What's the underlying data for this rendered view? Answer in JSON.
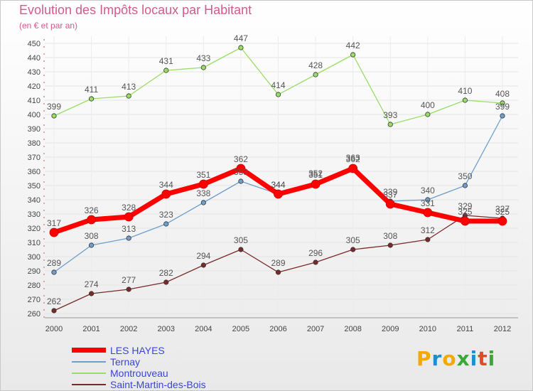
{
  "header": {
    "title": "Evolution des Impôts locaux par Habitant",
    "subtitle": "(en € et par an)"
  },
  "brand": {
    "letters": [
      "P",
      "r",
      "o",
      "x",
      "i",
      "t",
      "i"
    ],
    "colors": [
      "#f2a900",
      "#1a8fd1",
      "#f2a900",
      "#3aa935",
      "#1a8fd1",
      "#e24a2a",
      "#3aa935"
    ]
  },
  "chart_data": {
    "type": "line",
    "title": "Evolution des Impôts locaux par Habitant",
    "subtitle": "(en € et par an)",
    "xlabel": "",
    "ylabel": "",
    "categories": [
      "2000",
      "2001",
      "2002",
      "2003",
      "2004",
      "2005",
      "2006",
      "2007",
      "2008",
      "2009",
      "2010",
      "2011",
      "2012"
    ],
    "ylim": [
      260,
      450
    ],
    "ytick_step": 10,
    "grid": true,
    "legend_position": "bottom-left",
    "series": [
      {
        "name": "LES HAYES",
        "color": "#ff0000",
        "emphasis": true,
        "values": [
          317,
          326,
          328,
          344,
          351,
          362,
          344,
          351,
          362,
          337,
          331,
          325,
          325
        ]
      },
      {
        "name": "Ternay",
        "color": "#6e9fcc",
        "emphasis": false,
        "values": [
          289,
          308,
          313,
          323,
          338,
          353,
          344,
          352,
          363,
          339,
          340,
          350,
          399
        ]
      },
      {
        "name": "Montrouveau",
        "color": "#99dd66",
        "emphasis": false,
        "values": [
          399,
          411,
          413,
          431,
          433,
          447,
          414,
          428,
          442,
          393,
          400,
          410,
          408
        ]
      },
      {
        "name": "Saint-Martin-des-Bois",
        "color": "#7a2a2a",
        "emphasis": false,
        "values": [
          262,
          274,
          277,
          282,
          294,
          305,
          289,
          296,
          305,
          308,
          312,
          329,
          327
        ]
      }
    ],
    "value_labels": [
      {
        "x": "2000",
        "series": "LES HAYES",
        "text": "317"
      },
      {
        "x": "2001",
        "series": "LES HAYES",
        "text": "326"
      },
      {
        "x": "2002",
        "series": "LES HAYES",
        "text": "328"
      },
      {
        "x": "2003",
        "series": "LES HAYES",
        "text": "344"
      },
      {
        "x": "2004",
        "series": "LES HAYES",
        "text": "351"
      },
      {
        "x": "2005",
        "series": "LES HAYES",
        "text": "362"
      },
      {
        "x": "2006",
        "series": "LES HAYES",
        "text": "344"
      },
      {
        "x": "2007",
        "series": "LES HAYES",
        "text": "351"
      },
      {
        "x": "2008",
        "series": "LES HAYES",
        "text": "362"
      },
      {
        "x": "2009",
        "series": "LES HAYES",
        "text": "337"
      },
      {
        "x": "2010",
        "series": "LES HAYES",
        "text": "331"
      },
      {
        "x": "2011",
        "series": "LES HAYES",
        "text": "325"
      },
      {
        "x": "2012",
        "series": "LES HAYES",
        "text": "325"
      },
      {
        "x": "2000",
        "series": "Ternay",
        "text": "289"
      },
      {
        "x": "2001",
        "series": "Ternay",
        "text": "308"
      },
      {
        "x": "2002",
        "series": "Ternay",
        "text": "313"
      },
      {
        "x": "2003",
        "series": "Ternay",
        "text": "323"
      },
      {
        "x": "2004",
        "series": "Ternay",
        "text": "338"
      },
      {
        "x": "2005",
        "series": "Ternay",
        "text": "353"
      },
      {
        "x": "2006",
        "series": "Ternay",
        "text": "344"
      },
      {
        "x": "2007",
        "series": "Ternay",
        "text": "352"
      },
      {
        "x": "2008",
        "series": "Ternay",
        "text": "363"
      },
      {
        "x": "2009",
        "series": "Ternay",
        "text": "339"
      },
      {
        "x": "2010",
        "series": "Ternay",
        "text": "340"
      },
      {
        "x": "2011",
        "series": "Ternay",
        "text": "350"
      },
      {
        "x": "2012",
        "series": "Ternay",
        "text": "399"
      },
      {
        "x": "2000",
        "series": "Montrouveau",
        "text": "399"
      },
      {
        "x": "2001",
        "series": "Montrouveau",
        "text": "411"
      },
      {
        "x": "2002",
        "series": "Montrouveau",
        "text": "413"
      },
      {
        "x": "2003",
        "series": "Montrouveau",
        "text": "431"
      },
      {
        "x": "2004",
        "series": "Montrouveau",
        "text": "433"
      },
      {
        "x": "2005",
        "series": "Montrouveau",
        "text": "447"
      },
      {
        "x": "2006",
        "series": "Montrouveau",
        "text": "414"
      },
      {
        "x": "2007",
        "series": "Montrouveau",
        "text": "428"
      },
      {
        "x": "2008",
        "series": "Montrouveau",
        "text": "442"
      },
      {
        "x": "2009",
        "series": "Montrouveau",
        "text": "393"
      },
      {
        "x": "2010",
        "series": "Montrouveau",
        "text": "400"
      },
      {
        "x": "2011",
        "series": "Montrouveau",
        "text": "410"
      },
      {
        "x": "2012",
        "series": "Montrouveau",
        "text": "408"
      },
      {
        "x": "2000",
        "series": "Saint-Martin-des-Bois",
        "text": "262"
      },
      {
        "x": "2001",
        "series": "Saint-Martin-des-Bois",
        "text": "274"
      },
      {
        "x": "2002",
        "series": "Saint-Martin-des-Bois",
        "text": "277"
      },
      {
        "x": "2003",
        "series": "Saint-Martin-des-Bois",
        "text": "282"
      },
      {
        "x": "2004",
        "series": "Saint-Martin-des-Bois",
        "text": "294"
      },
      {
        "x": "2005",
        "series": "Saint-Martin-des-Bois",
        "text": "305"
      },
      {
        "x": "2006",
        "series": "Saint-Martin-des-Bois",
        "text": "289"
      },
      {
        "x": "2007",
        "series": "Saint-Martin-des-Bois",
        "text": "296"
      },
      {
        "x": "2008",
        "series": "Saint-Martin-des-Bois",
        "text": "305"
      },
      {
        "x": "2009",
        "series": "Saint-Martin-des-Bois",
        "text": "308"
      },
      {
        "x": "2010",
        "series": "Saint-Martin-des-Bois",
        "text": "312"
      },
      {
        "x": "2011",
        "series": "Saint-Martin-des-Bois",
        "text": "329"
      },
      {
        "x": "2012",
        "series": "Saint-Martin-des-Bois",
        "text": "327"
      }
    ]
  }
}
